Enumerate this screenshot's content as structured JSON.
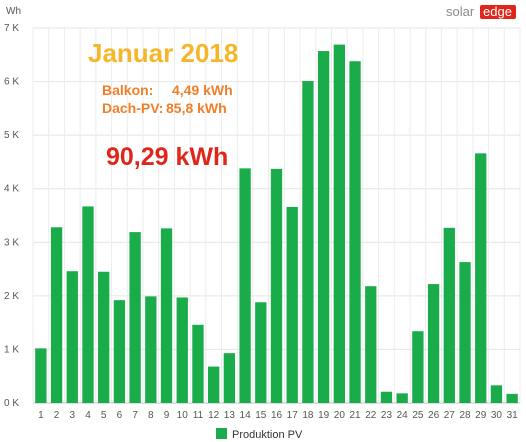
{
  "brand": {
    "logo_text_1": "solar",
    "logo_text_2": "edge",
    "accent": "#e0261b"
  },
  "chart_data": {
    "type": "bar",
    "unit_label": "Wh",
    "categories": [
      "1",
      "2",
      "3",
      "4",
      "5",
      "6",
      "7",
      "8",
      "9",
      "10",
      "11",
      "12",
      "13",
      "14",
      "15",
      "16",
      "17",
      "18",
      "19",
      "20",
      "21",
      "22",
      "23",
      "24",
      "25",
      "26",
      "27",
      "28",
      "29",
      "30",
      "31"
    ],
    "series": [
      {
        "name": "Produktion PV",
        "color": "#1aab4b",
        "values": [
          1020,
          3280,
          2460,
          3670,
          2450,
          1920,
          3190,
          1990,
          3260,
          1970,
          1460,
          680,
          930,
          4380,
          1880,
          4370,
          3660,
          6010,
          6570,
          6690,
          6380,
          2180,
          210,
          180,
          1340,
          2220,
          3270,
          2630,
          4660,
          330,
          170
        ]
      }
    ],
    "ylim": [
      0,
      7000
    ],
    "yticks": [
      0,
      1000,
      2000,
      3000,
      4000,
      5000,
      6000,
      7000
    ],
    "ytick_labels": [
      "0 K",
      "1 K",
      "2 K",
      "3 K",
      "4 K",
      "5 K",
      "6 K",
      "7 K"
    ],
    "grid": true,
    "legend": "bottom-center",
    "annotations": {
      "title": "Januar 2018",
      "title_color": "#f7b62a",
      "line1_label": "Balkon:",
      "line1_value": "4,49 kWh",
      "line2_label": "Dach-PV:",
      "line2_value": "85,8 kWh",
      "sub_color": "#f07f2a",
      "total": "90,29 kWh",
      "total_color": "#e0261b"
    }
  }
}
